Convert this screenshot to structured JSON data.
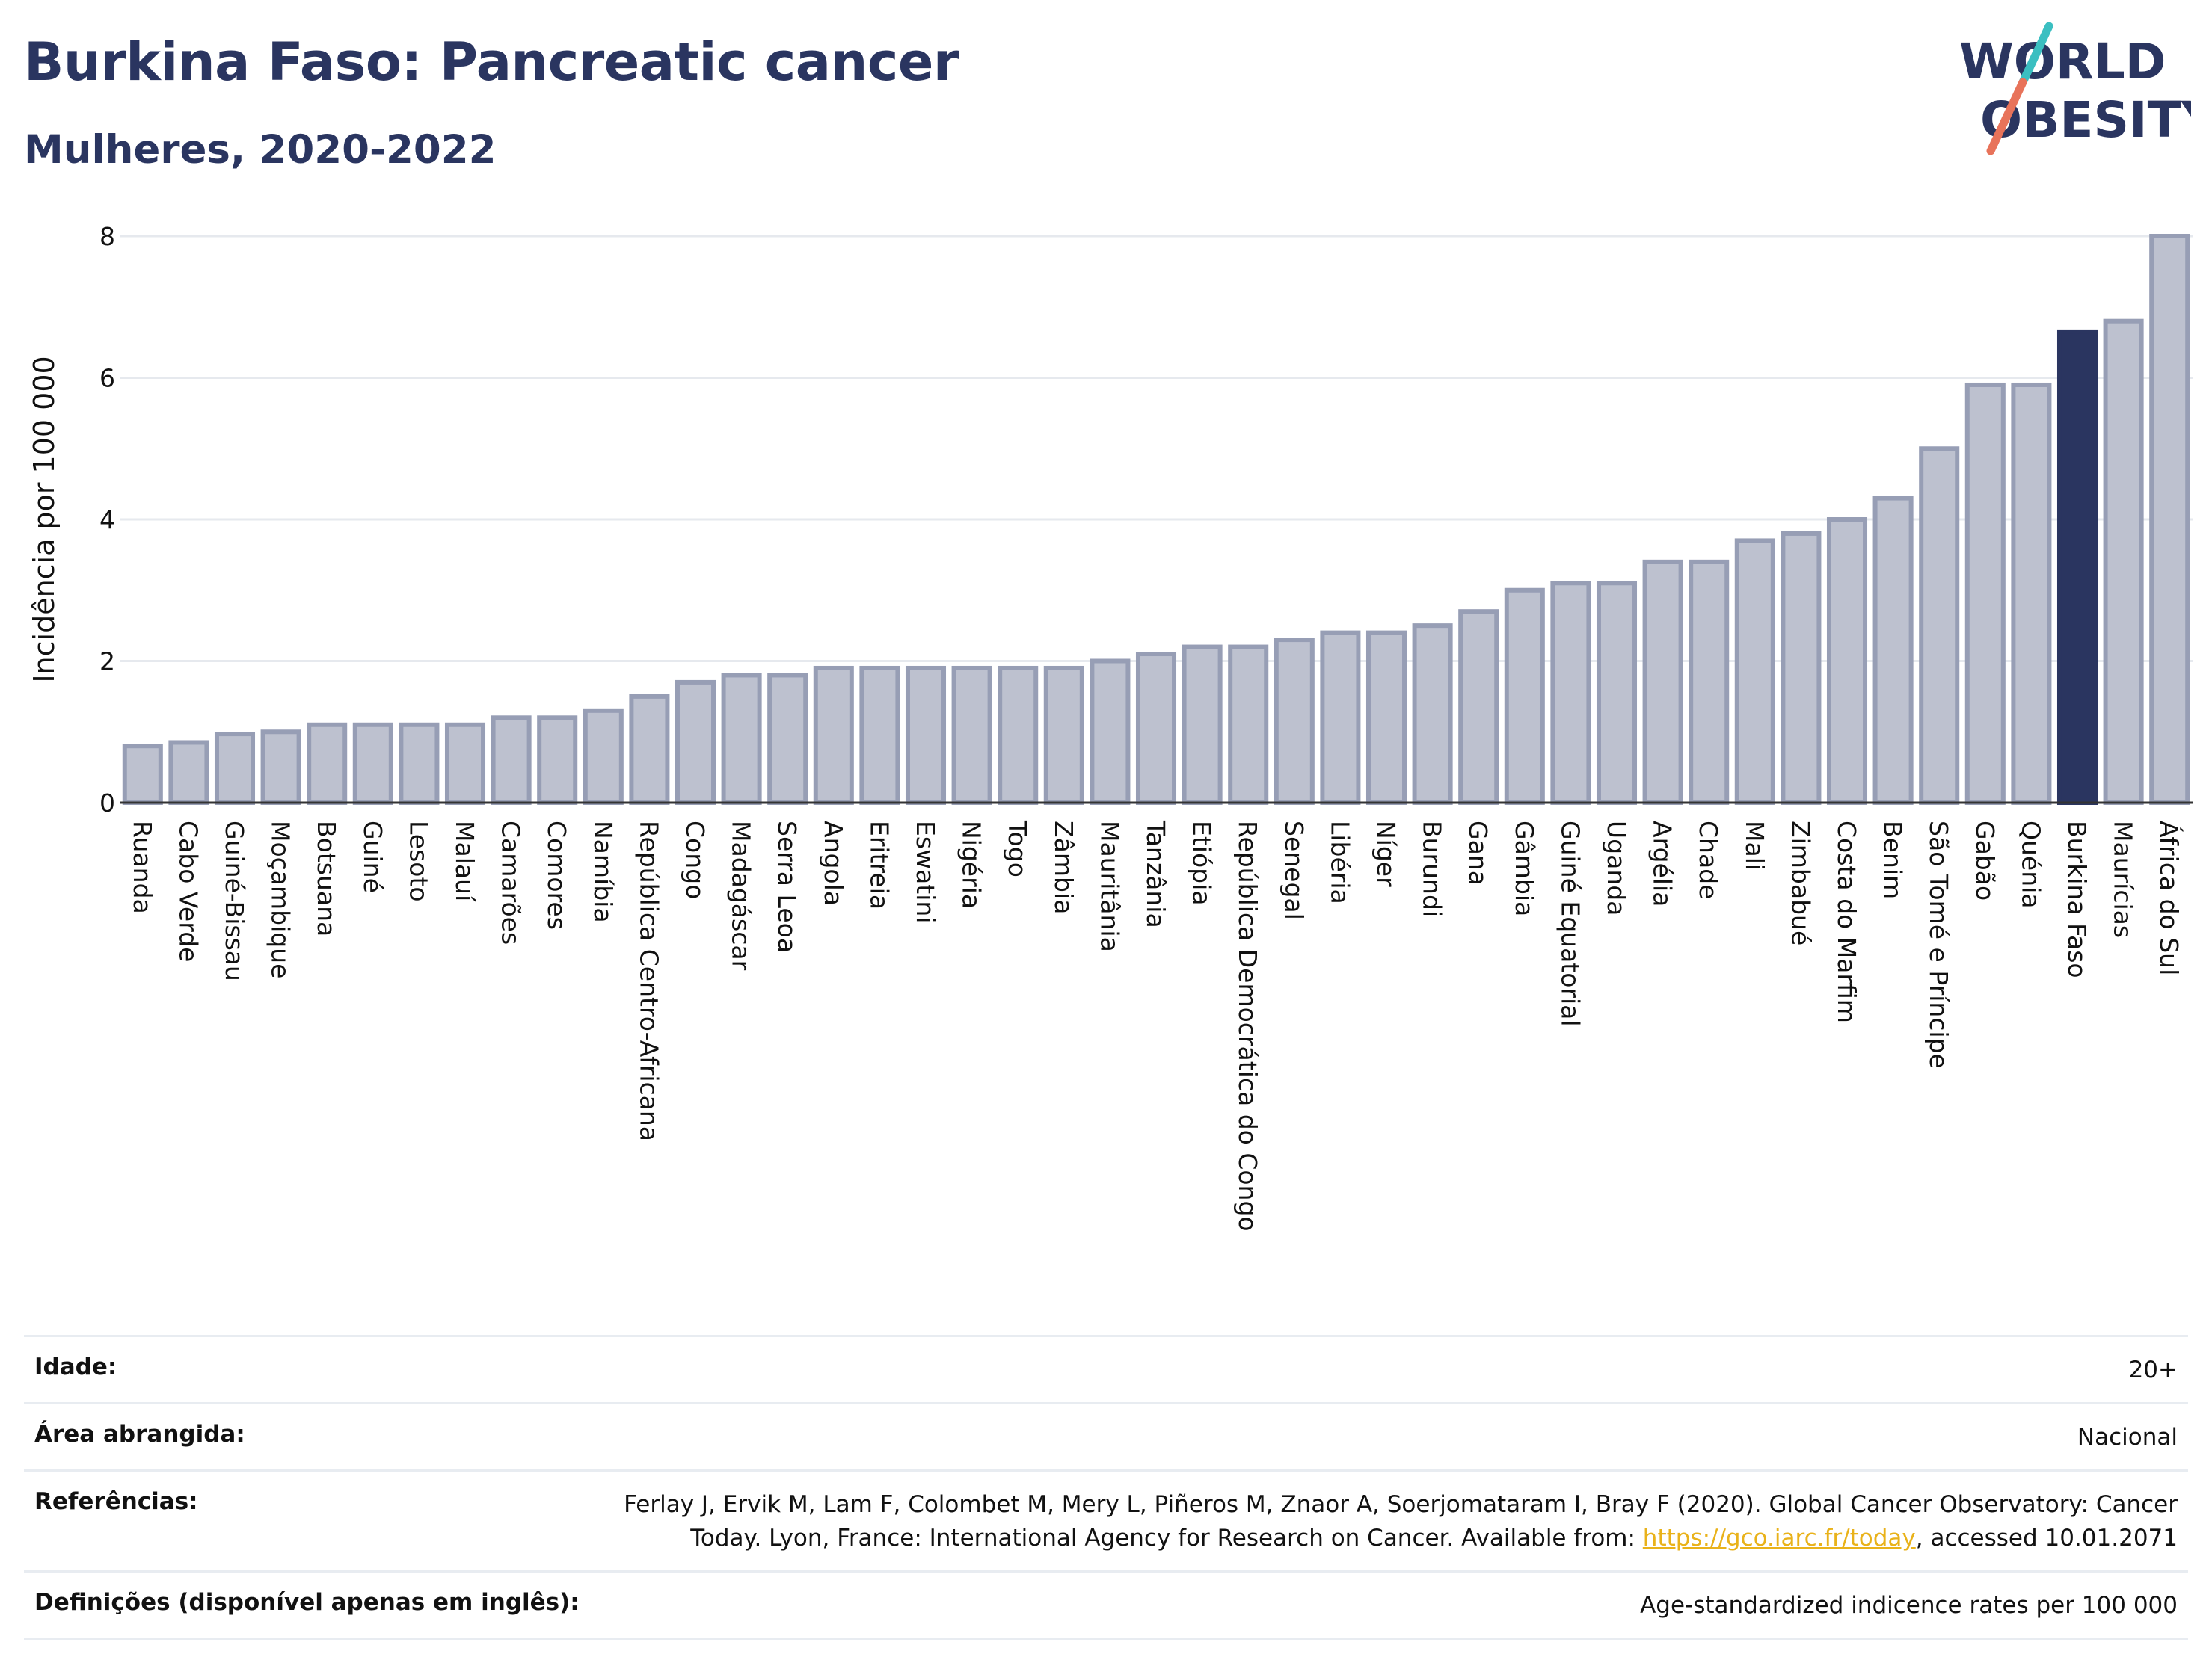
{
  "header": {
    "title": "Burkina Faso: Pancreatic cancer",
    "subtitle": "Mulheres, 2020-2022"
  },
  "logo": {
    "line1": "WORLD",
    "line2": "OBESITY",
    "colors": {
      "text": "#2a3560",
      "slash_top": "#3bbfc1",
      "slash_bottom": "#e8735a"
    }
  },
  "colors": {
    "bar": "#bdc1cf",
    "bar_border": "#979eb5",
    "highlight": "#2a3560",
    "grid": "#e6e9ee"
  },
  "chart_data": {
    "type": "bar",
    "ylabel": "Incidência por 100 000",
    "xlabel": "",
    "ylim": [
      0,
      8
    ],
    "yticks": [
      0,
      2,
      4,
      6,
      8
    ],
    "grid": true,
    "highlight": "Burkina Faso",
    "categories": [
      "Ruanda",
      "Cabo Verde",
      "Guiné-Bissau",
      "Moçambique",
      "Botsuana",
      "Guiné",
      "Lesoto",
      "Malauí",
      "Camarões",
      "Comores",
      "Namíbia",
      "República Centro-Africana",
      "Congo",
      "Madagáscar",
      "Serra Leoa",
      "Angola",
      "Eritreia",
      "Eswatini",
      "Nigéria",
      "Togo",
      "Zâmbia",
      "Mauritânia",
      "Tanzânia",
      "Etiópia",
      "República Democrática do Congo",
      "Senegal",
      "Libéria",
      "Níger",
      "Burundi",
      "Gana",
      "Gâmbia",
      "Guiné Equatorial",
      "Uganda",
      "Argélia",
      "Chade",
      "Mali",
      "Zimbabué",
      "Costa do Marfim",
      "Benim",
      "São Tomé e Príncipe",
      "Gabão",
      "Quénia",
      "Burkina Faso",
      "Maurícias",
      "África do Sul"
    ],
    "values": [
      0.8,
      0.85,
      0.97,
      1.0,
      1.1,
      1.1,
      1.1,
      1.1,
      1.2,
      1.2,
      1.3,
      1.5,
      1.7,
      1.8,
      1.8,
      1.9,
      1.9,
      1.9,
      1.9,
      1.9,
      1.9,
      2.0,
      2.1,
      2.2,
      2.2,
      2.3,
      2.4,
      2.4,
      2.5,
      2.7,
      3.0,
      3.1,
      3.1,
      3.4,
      3.4,
      3.7,
      3.8,
      4.0,
      4.3,
      5.0,
      5.9,
      5.9,
      6.65,
      6.8,
      8.0
    ]
  },
  "info": {
    "age_label": "Idade:",
    "age_value": "20+",
    "area_label": "Área abrangida:",
    "area_value": "Nacional",
    "refs_label": "Referências:",
    "refs_line1": "Ferlay J, Ervik M, Lam F, Colombet M, Mery L, Piñeros M, Znaor A, Soerjomataram I, Bray F (2020). Global Cancer Observatory: Cancer",
    "refs_line2_pre": "Today. Lyon, France: International Agency for Research on Cancer. Available from: ",
    "refs_link": "https://gco.iarc.fr/today",
    "refs_line2_post": ", accessed 10.01.2071",
    "defs_label": "Definições (disponível apenas em inglês):",
    "defs_value": "Age-standardized indicence rates per 100 000"
  }
}
